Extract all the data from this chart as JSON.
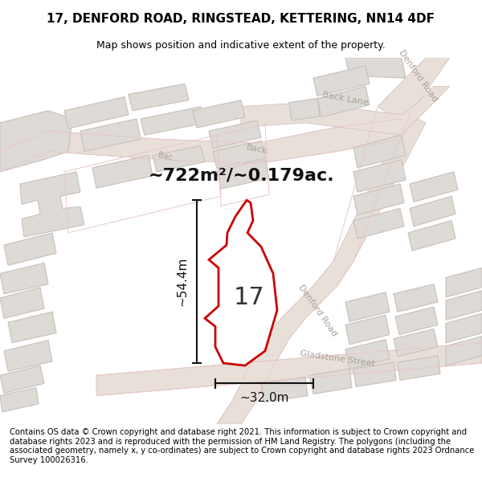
{
  "title": "17, DENFORD ROAD, RINGSTEAD, KETTERING, NN14 4DF",
  "subtitle": "Map shows position and indicative extent of the property.",
  "area_label": "~722m²/~0.179ac.",
  "width_label": "~32.0m",
  "height_label": "~54.4m",
  "number_label": "17",
  "footer": "Contains OS data © Crown copyright and database right 2021. This information is subject to Crown copyright and database rights 2023 and is reproduced with the permission of HM Land Registry. The polygons (including the associated geometry, namely x, y co-ordinates) are subject to Crown copyright and database rights 2023 Ordnance Survey 100026316.",
  "map_bg": "#f5f2ef",
  "road_fill": "#e8e0d8",
  "road_outline": "#d4b8b8",
  "road_outline2": "#e8c8c8",
  "building_fill": "#dedad6",
  "building_edge": "#c8c0bc",
  "property_color": "#cc0000",
  "dim_color": "#111111",
  "text_road_color": "#aaa098",
  "title_fontsize": 11,
  "subtitle_fontsize": 9,
  "area_fontsize": 16,
  "dim_fontsize": 11,
  "number_fontsize": 22,
  "footer_fontsize": 7.2,
  "road_label_fontsize": 8
}
